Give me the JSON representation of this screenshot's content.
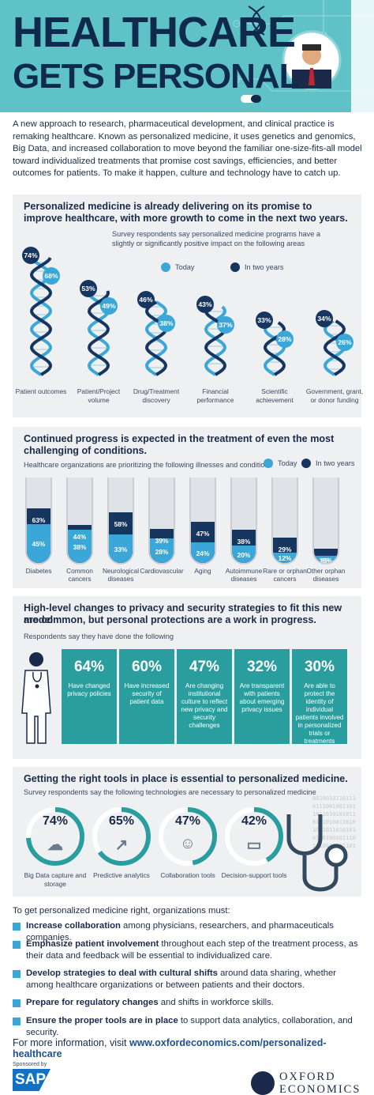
{
  "header": {
    "title_line1": "HEALTHCARE",
    "title_line2": "GETS PERSONAL",
    "accent_color": "#5ec2c7",
    "icons": [
      "dna-icon",
      "doctor-avatar-icon",
      "pill-icon"
    ]
  },
  "intro": "A new approach to research, pharmaceutical development, and clinical practice is remaking healthcare. Known as personalized medicine, it uses genetics and genomics, Big Data, and increased collaboration to move beyond the familiar one-size-fits-all model toward individualized treatments that promise cost savings, efficiencies, and better outcomes for patients. To make it happen, culture and technology have to catch up.",
  "section1": {
    "title": "Personalized medicine is already delivering on its promise to improve healthcare, with more growth to come in the next two years.",
    "subtitle_line1": "Survey respondents say personalized medicine programs have a",
    "subtitle_line2": "slightly or significantly positive impact on the following areas",
    "legend_today": "Today",
    "legend_future": "In two years",
    "color_today": "#3aa7d8",
    "color_future": "#17365f"
  },
  "section2": {
    "title_line1": "Continued progress is expected in the treatment of even the most",
    "title_line2": "challenging of conditions.",
    "subtitle": "Healthcare organizations are prioritizing the following illnesses and conditions",
    "legend_today": "Today",
    "legend_future": "In two years"
  },
  "section3": {
    "title_line1": "High-level changes to privacy and security strategies to fit this new model",
    "title_line2": "are common, but personal protections are a work in progress.",
    "subtitle": "Respondents say they have done the following",
    "panel_color": "#2a9e9e",
    "panels": [
      {
        "pct": "64%",
        "text": "Have changed privacy policies"
      },
      {
        "pct": "60%",
        "text": "Have increased security of patient data"
      },
      {
        "pct": "47%",
        "text": "Are changing institutional culture to reflect new privacy and security challenges"
      },
      {
        "pct": "32%",
        "text": "Are transparent with patients about emerging privacy issues"
      },
      {
        "pct": "30%",
        "text": "Are able to protect the identity of individual patients involved in personalized trials or treatments"
      }
    ]
  },
  "section4": {
    "title": "Getting the right tools in place is essential to personalized medicine.",
    "subtitle": "Survey respondents say the following technologies are necessary to personalized medicine",
    "ring_color": "#2a9e9e",
    "tools": [
      {
        "pct": "74%",
        "value": 74,
        "label": "Big Data capture and storage",
        "icon": "server-cloud-icon"
      },
      {
        "pct": "65%",
        "value": 65,
        "label": "Predictive analytics",
        "icon": "line-graph-icon"
      },
      {
        "pct": "47%",
        "value": 47,
        "label": "Collaboration tools",
        "icon": "people-group-icon"
      },
      {
        "pct": "42%",
        "value": 42,
        "label": "Decision-support tools",
        "icon": "tablet-icon"
      }
    ],
    "binary_text": [
      "0010010110111",
      "0111001001101",
      "1011010101011",
      "0101010011010",
      "1001011010101",
      "0110100101110",
      "1010010101101"
    ]
  },
  "actions": {
    "intro": "To get personalized medicine right, organizations must:",
    "items": [
      {
        "bold": "Increase collaboration",
        "rest": " among physicians, researchers, and pharmaceuticals companies."
      },
      {
        "bold": "Emphasize patient involvement",
        "rest": " throughout each step of the treatment process, as their data and feedback will be essential to individualized care."
      },
      {
        "bold": "Develop strategies to deal with cultural shifts",
        "rest": " around data sharing, whether among healthcare organizations or between patients and their doctors."
      },
      {
        "bold": "Prepare for regulatory changes",
        "rest": " and shifts in workforce skills."
      },
      {
        "bold": "Ensure the proper tools are in place",
        "rest": " to support data analytics, collaboration, and security."
      }
    ]
  },
  "footer": {
    "more_prefix": "For more information, visit ",
    "more_link": "www.oxfordeconomics.com/personalized-healthcare",
    "sponsored": "Sponsored by",
    "sap": "SAP",
    "oxford_line1": "OXFORD",
    "oxford_line2": "ECONOMICS"
  },
  "chart_data": [
    {
      "type": "bar",
      "title": "Personalized medicine is already delivering on its promise to improve healthcare, with more growth to come in the next two years.",
      "categories": [
        "Patient outcomes",
        "Patient/Project volume",
        "Drug/Treatment discovery",
        "Financial performance",
        "Scientific achievement",
        "Government, grant, or donor funding"
      ],
      "series": [
        {
          "name": "Today",
          "values": [
            68,
            49,
            38,
            37,
            28,
            26
          ],
          "labels": [
            "68%",
            "49%",
            "38%",
            "37%",
            "28%",
            "26%"
          ]
        },
        {
          "name": "In two years",
          "values": [
            74,
            53,
            46,
            43,
            33,
            34
          ],
          "labels": [
            "74%",
            "53%",
            "46%",
            "43%",
            "33%",
            "34%"
          ]
        }
      ],
      "ylim": [
        0,
        100
      ]
    },
    {
      "type": "bar",
      "title": "Continued progress is expected in the treatment of even the most challenging of conditions.",
      "categories": [
        "Diabetes",
        "Common cancers",
        "Neurological diseases",
        "Cardiovascular",
        "Aging",
        "Autoimmune diseases",
        "Rare or orphan cancers",
        "Other orphan diseases"
      ],
      "series": [
        {
          "name": "Today",
          "values": [
            45,
            38,
            33,
            28,
            24,
            20,
            12,
            8
          ],
          "labels": [
            "45%",
            "38%",
            "33%",
            "28%",
            "24%",
            "20%",
            "12%",
            "8%"
          ]
        },
        {
          "name": "In two years",
          "values": [
            63,
            44,
            58,
            39,
            47,
            38,
            29,
            16
          ],
          "labels": [
            "63%",
            "44%",
            "58%",
            "39%",
            "47%",
            "38%",
            "29%",
            "16%"
          ]
        }
      ],
      "ylim": [
        0,
        100
      ]
    }
  ]
}
